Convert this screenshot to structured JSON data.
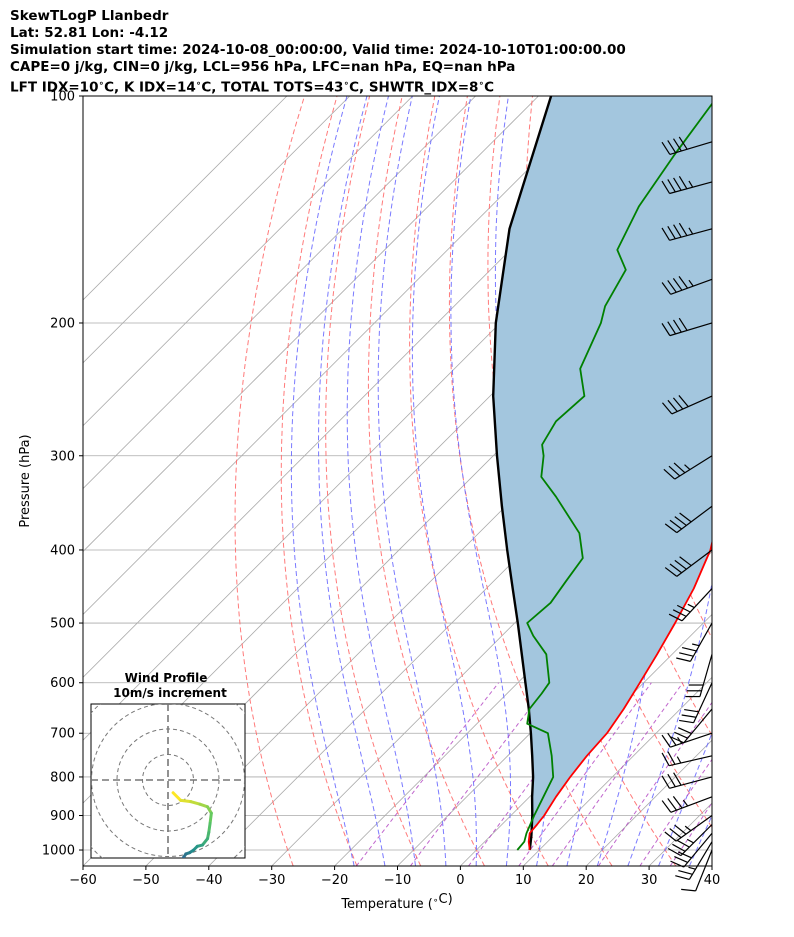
{
  "header": {
    "title": "SkewTLogP Llanbedr",
    "location": "Lat: 52.81   Lon: -4.12",
    "times": "Simulation start time: 2024-10-08_00:00:00, Valid time: 2024-10-10T01:00:00.00",
    "indices1": "CAPE=0 j/kg, CIN=0 j/kg, LCL=956 hPa, LFC=nan hPa, EQ=nan hPa",
    "indices2": "LFT IDX=10$^\\circ$C, K IDX=14$^\\circ$C, TOTAL TOTS=43$^\\circ$C, SHWTR_IDX=8$^\\circ$C"
  },
  "inset": {
    "title": "Wind Profile",
    "subtitle": "10m/s increment"
  },
  "colors": {
    "temperature": "#ff0000",
    "dewpoint": "#008000",
    "parcel": "#000000",
    "cape_fill": "#a3c6de",
    "dry_adiabat": "#ff6b6b",
    "moist_adiabat": "#6b6bff",
    "mixing_ratio": "#b040c0",
    "isotherm": "#aaaaaa"
  },
  "chart_data": {
    "type": "line",
    "subtype": "skew-T log-P diagram",
    "xlabel": "Temperature ($^\\circ$C)",
    "ylabel": "Pressure (hPa)",
    "xlim": [
      -60,
      40
    ],
    "ylim": [
      1050,
      100
    ],
    "y_scale": "log",
    "x_ticks": [
      "−60",
      "−50",
      "−40",
      "−30",
      "−20",
      "−10",
      "0",
      "10",
      "20",
      "30",
      "40"
    ],
    "y_ticks": [
      "1000",
      "900",
      "800",
      "700",
      "600",
      "500",
      "400",
      "300",
      "200",
      "100"
    ],
    "series": [
      {
        "role": "temperature",
        "points": [
          [
            1000,
            8.5
          ],
          [
            975,
            7.0
          ],
          [
            950,
            5.8
          ],
          [
            925,
            5.6
          ],
          [
            900,
            5.3
          ],
          [
            850,
            4.2
          ],
          [
            800,
            3.3
          ],
          [
            750,
            2.6
          ],
          [
            700,
            2.2
          ],
          [
            650,
            1.0
          ],
          [
            600,
            -0.6
          ],
          [
            550,
            -2.4
          ],
          [
            500,
            -4.5
          ],
          [
            450,
            -7.0
          ],
          [
            400,
            -10.5
          ],
          [
            350,
            -15.8
          ],
          [
            330,
            -18.5
          ],
          [
            300,
            -23.5
          ],
          [
            270,
            -29.3
          ],
          [
            250,
            -33.0
          ],
          [
            230,
            -37.5
          ],
          [
            200,
            -44.5
          ],
          [
            180,
            -50.5
          ],
          [
            160,
            -55.5
          ],
          [
            140,
            -59.5
          ],
          [
            120,
            -62.0
          ],
          [
            100,
            -66.0
          ]
        ]
      },
      {
        "role": "dewpoint",
        "points": [
          [
            1000,
            6.5
          ],
          [
            975,
            6.3
          ],
          [
            950,
            5.3
          ],
          [
            900,
            3.7
          ],
          [
            850,
            2.2
          ],
          [
            800,
            0.6
          ],
          [
            750,
            -3.0
          ],
          [
            700,
            -7.2
          ],
          [
            680,
            -12.0
          ],
          [
            650,
            -14.0
          ],
          [
            620,
            -14.5
          ],
          [
            600,
            -15.0
          ],
          [
            550,
            -20.0
          ],
          [
            520,
            -25.0
          ],
          [
            500,
            -28.0
          ],
          [
            470,
            -27.5
          ],
          [
            440,
            -28.5
          ],
          [
            410,
            -29.5
          ],
          [
            380,
            -34.0
          ],
          [
            340,
            -43.5
          ],
          [
            320,
            -49.0
          ],
          [
            300,
            -52.0
          ],
          [
            290,
            -54.0
          ],
          [
            270,
            -55.5
          ],
          [
            250,
            -55.0
          ],
          [
            230,
            -60.0
          ],
          [
            200,
            -64.0
          ],
          [
            190,
            -66.0
          ],
          [
            170,
            -68.5
          ],
          [
            160,
            -73.0
          ],
          [
            140,
            -76.5
          ],
          [
            120,
            -79.0
          ],
          [
            100,
            -81.5
          ]
        ]
      },
      {
        "role": "parcel",
        "points": [
          [
            1000,
            8.5
          ],
          [
            956,
            6.4
          ],
          [
            900,
            3.4
          ],
          [
            850,
            0.4
          ],
          [
            800,
            -2.6
          ],
          [
            750,
            -6.1
          ],
          [
            700,
            -9.9
          ],
          [
            650,
            -14.1
          ],
          [
            600,
            -18.8
          ],
          [
            550,
            -23.9
          ],
          [
            500,
            -29.5
          ],
          [
            450,
            -35.8
          ],
          [
            400,
            -42.8
          ],
          [
            350,
            -50.6
          ],
          [
            300,
            -59.4
          ],
          [
            250,
            -69.5
          ],
          [
            200,
            -80.7
          ],
          [
            150,
            -93.5
          ],
          [
            100,
            -108.0
          ]
        ]
      }
    ],
    "wind_barbs": [
      {
        "p": 1000,
        "u": 2,
        "v": 5
      },
      {
        "p": 975,
        "u": 6,
        "v": 10
      },
      {
        "p": 950,
        "u": 10,
        "v": 12
      },
      {
        "p": 925,
        "u": 12,
        "v": 12
      },
      {
        "p": 900,
        "u": 14,
        "v": 10
      },
      {
        "p": 850,
        "u": 16,
        "v": 6
      },
      {
        "p": 800,
        "u": 15,
        "v": 4
      },
      {
        "p": 750,
        "u": 13,
        "v": 3
      },
      {
        "p": 700,
        "u": 12,
        "v": 4
      },
      {
        "p": 650,
        "u": 10,
        "v": 12
      },
      {
        "p": 600,
        "u": 6,
        "v": 13
      },
      {
        "p": 550,
        "u": 4,
        "v": 14
      },
      {
        "p": 500,
        "u": 9,
        "v": 16
      },
      {
        "p": 450,
        "u": 13,
        "v": 14
      },
      {
        "p": 400,
        "u": 16,
        "v": 12
      },
      {
        "p": 350,
        "u": 16,
        "v": 12
      },
      {
        "p": 300,
        "u": 16,
        "v": 10
      },
      {
        "p": 250,
        "u": 18,
        "v": 8
      },
      {
        "p": 200,
        "u": 20,
        "v": 6
      },
      {
        "p": 175,
        "u": 22,
        "v": 8
      },
      {
        "p": 150,
        "u": 22,
        "v": 6
      },
      {
        "p": 130,
        "u": 22,
        "v": 6
      },
      {
        "p": 115,
        "u": 20,
        "v": 6
      }
    ],
    "hodograph": {
      "ring_increment_ms": 10,
      "points": [
        [
          2.0,
          5.0
        ],
        [
          5.0,
          8.0
        ],
        [
          9.0,
          8.5
        ],
        [
          12.5,
          9.5
        ],
        [
          15.5,
          10.5
        ],
        [
          17.0,
          13.0
        ],
        [
          16.5,
          17.0
        ],
        [
          16.0,
          20.5
        ],
        [
          15.5,
          23.0
        ],
        [
          13.5,
          25.5
        ],
        [
          11.5,
          26.0
        ],
        [
          10.0,
          27.5
        ],
        [
          8.5,
          28.5
        ],
        [
          7.0,
          29.0
        ],
        [
          6.0,
          30.5
        ],
        [
          5.5,
          32.5
        ],
        [
          4.5,
          34.5
        ],
        [
          3.5,
          36.5
        ],
        [
          4.5,
          38.0
        ],
        [
          5.5,
          38.5
        ],
        [
          6.5,
          38.0
        ],
        [
          7.0,
          36.5
        ],
        [
          7.0,
          35.0
        ]
      ]
    }
  }
}
